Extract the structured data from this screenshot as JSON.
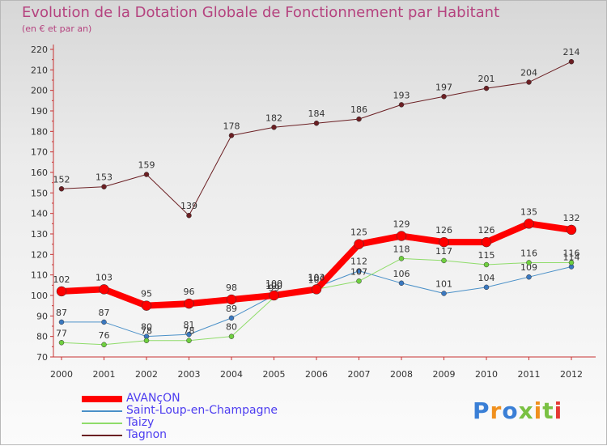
{
  "title": "Evolution de la Dotation Globale de Fonctionnement par Habitant",
  "subtitle": "(en € et par an)",
  "logo_text": "Proxiti",
  "colors": {
    "title": "#b5437f",
    "axis": "#c83232",
    "tick_label": "#333333",
    "legend_text": "#4d3df0"
  },
  "chart_data": {
    "type": "line",
    "title": "Evolution de la Dotation Globale de Fonctionnement par Habitant",
    "subtitle": "(en € et par an)",
    "xlabel": "",
    "ylabel": "",
    "categories": [
      "2000",
      "2001",
      "2002",
      "2003",
      "2004",
      "2005",
      "2006",
      "2007",
      "2008",
      "2009",
      "2010",
      "2011",
      "2012"
    ],
    "ylim": [
      70,
      220
    ],
    "yticks": [
      70,
      80,
      90,
      100,
      110,
      120,
      130,
      140,
      150,
      160,
      170,
      180,
      190,
      200,
      210,
      220
    ],
    "grid": false,
    "legend_position": "bottom-left",
    "series": [
      {
        "name": "Tagnon",
        "color": "#6b1f23",
        "marker": "#6b1f23",
        "width": 1,
        "values": [
          152,
          153,
          159,
          139,
          178,
          182,
          184,
          186,
          193,
          197,
          201,
          204,
          214
        ],
        "labels": [
          "152",
          "153",
          "159",
          "139",
          "178",
          "182",
          "184",
          "186",
          "193",
          "197",
          "201",
          "204",
          "214"
        ]
      },
      {
        "name": "Saint-Loup-en-Champagne",
        "color": "#4a90c8",
        "marker": "#3a78c0",
        "width": 1,
        "values": [
          87,
          87,
          80,
          81,
          89,
          100,
          104,
          112,
          106,
          101,
          104,
          109,
          114
        ],
        "labels": [
          "87",
          "87",
          "80",
          "81",
          "89",
          "100",
          "104",
          "112",
          "106",
          "101",
          "104",
          "109",
          "114"
        ]
      },
      {
        "name": "Taizy",
        "color": "#8fdc6a",
        "marker": "#6fcf3f",
        "width": 1,
        "values": [
          77,
          76,
          78,
          78,
          80,
          99,
          103,
          107,
          118,
          117,
          115,
          116,
          116
        ],
        "labels": [
          "77",
          "76",
          "78",
          "78",
          "80",
          "99",
          "103",
          "107",
          "118",
          "117",
          "115",
          "116",
          "116"
        ]
      },
      {
        "name": "AVANçON",
        "color": "#ff0000",
        "marker": "#ff0000",
        "width": 8,
        "values": [
          102,
          103,
          95,
          96,
          98,
          100,
          103,
          125,
          129,
          126,
          126,
          135,
          132
        ],
        "labels": [
          "102",
          "103",
          "95",
          "96",
          "98",
          "100",
          "103",
          "125",
          "129",
          "126",
          "126",
          "135",
          "132"
        ]
      }
    ]
  },
  "legend": {
    "items": [
      {
        "label": "AVANçON",
        "color": "#ff0000",
        "thickness": 8
      },
      {
        "label": "Saint-Loup-en-Champagne",
        "color": "#4a90c8",
        "thickness": 2
      },
      {
        "label": "Taizy",
        "color": "#8fdc6a",
        "thickness": 2
      },
      {
        "label": "Tagnon",
        "color": "#6b1f23",
        "thickness": 2
      }
    ]
  }
}
